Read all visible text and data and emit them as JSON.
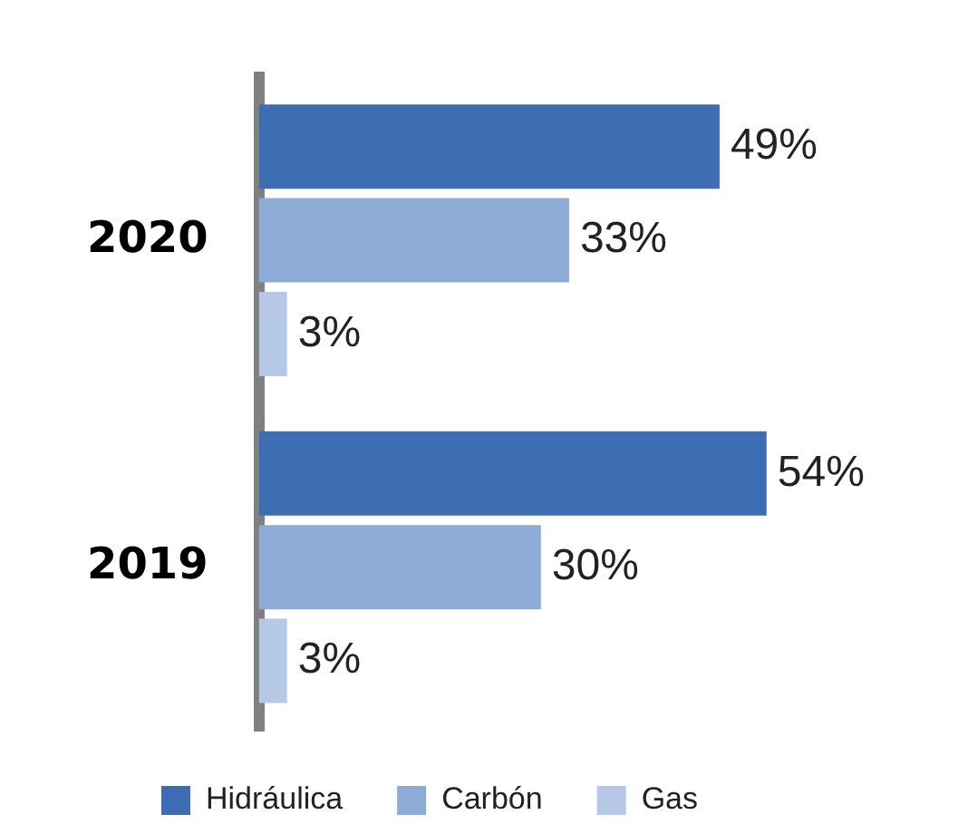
{
  "chart_data": {
    "type": "bar",
    "orientation": "horizontal",
    "categories": [
      "2020",
      "2019"
    ],
    "series": [
      {
        "name": "Hidráulica",
        "color": "#3d6eb4",
        "values": [
          49,
          54
        ],
        "value_labels": [
          "49%",
          "54%"
        ]
      },
      {
        "name": "Carbón",
        "color": "#8eaad6",
        "values": [
          33,
          30
        ],
        "value_labels": [
          "33%",
          "30%"
        ]
      },
      {
        "name": "Gas",
        "color": "#b5c9e6",
        "values": [
          3,
          3
        ],
        "value_labels": [
          "3%",
          "3%"
        ]
      }
    ],
    "legend": "bottom",
    "grid": false,
    "tick_labels": "y"
  }
}
